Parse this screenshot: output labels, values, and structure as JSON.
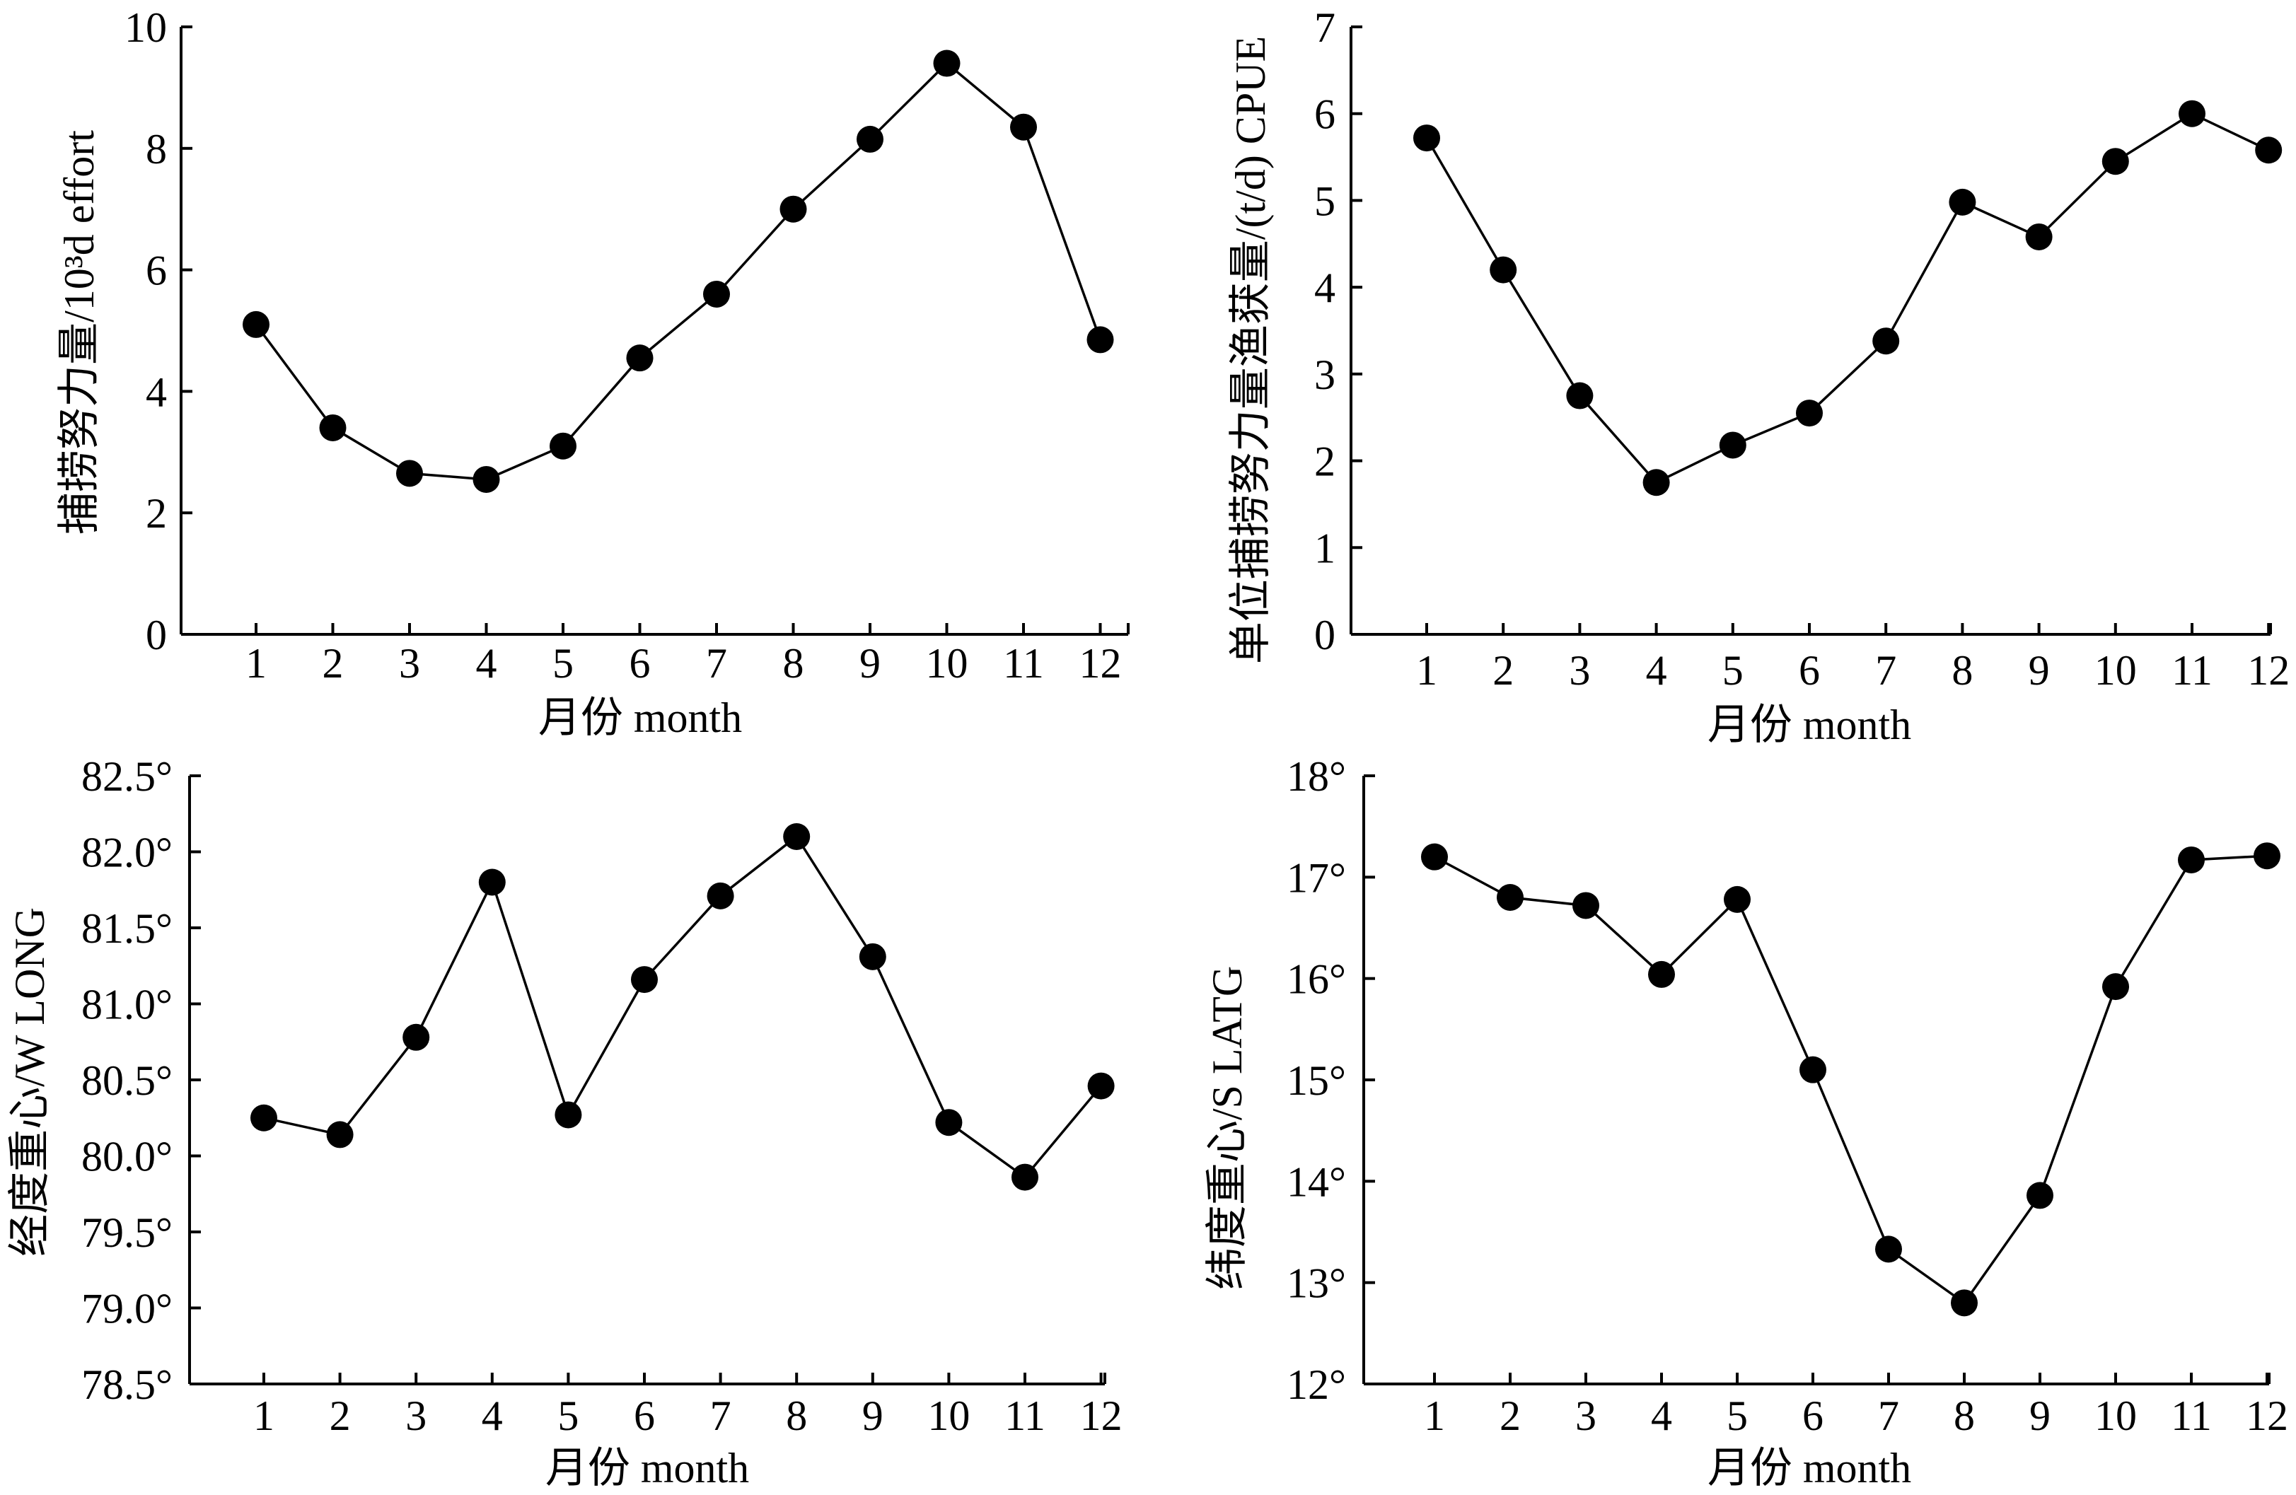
{
  "chart_data": [
    {
      "type": "line",
      "xlabel": "月份 month",
      "ylabel": "捕捞努力量/10³d effort",
      "categories": [
        "1",
        "2",
        "3",
        "4",
        "5",
        "6",
        "7",
        "8",
        "9",
        "10",
        "11",
        "12"
      ],
      "values": [
        5.1,
        3.4,
        2.65,
        2.55,
        3.1,
        4.55,
        5.6,
        7.0,
        8.15,
        9.4,
        8.35,
        4.85
      ],
      "ylim": [
        0,
        10
      ],
      "yticks": [
        0,
        2,
        4,
        6,
        8,
        10
      ],
      "ytick_labels": [
        "0",
        "2",
        "4",
        "6",
        "8",
        "10"
      ],
      "grid": false,
      "marker": "filled circle"
    },
    {
      "type": "line",
      "xlabel": "月份 month",
      "ylabel": "单位捕捞努力量渔获量/(t/d) CPUE",
      "categories": [
        "1",
        "2",
        "3",
        "4",
        "5",
        "6",
        "7",
        "8",
        "9",
        "10",
        "11",
        "12"
      ],
      "values": [
        5.72,
        4.2,
        2.75,
        1.75,
        2.18,
        2.55,
        3.38,
        4.98,
        4.58,
        5.45,
        6.0,
        5.58
      ],
      "ylim": [
        0,
        7
      ],
      "yticks": [
        0,
        1,
        2,
        3,
        4,
        5,
        6,
        7
      ],
      "ytick_labels": [
        "0",
        "1",
        "2",
        "3",
        "4",
        "5",
        "6",
        "7"
      ],
      "grid": false,
      "marker": "filled circle"
    },
    {
      "type": "line",
      "xlabel": "月份 month",
      "ylabel": "经度重心/W LONG",
      "categories": [
        "1",
        "2",
        "3",
        "4",
        "5",
        "6",
        "7",
        "8",
        "9",
        "10",
        "11",
        "12"
      ],
      "values": [
        80.25,
        80.14,
        80.78,
        81.8,
        80.27,
        81.16,
        81.71,
        82.1,
        81.31,
        80.22,
        79.86,
        80.46
      ],
      "ylim": [
        78.5,
        82.5
      ],
      "yticks": [
        78.5,
        79.0,
        79.5,
        80.0,
        80.5,
        81.0,
        81.5,
        82.0,
        82.5
      ],
      "ytick_labels": [
        "78.5°",
        "79.0°",
        "79.5°",
        "80.0°",
        "80.5°",
        "81.0°",
        "81.5°",
        "82.0°",
        "82.5°"
      ],
      "grid": false,
      "marker": "filled circle"
    },
    {
      "type": "line",
      "xlabel": "月份 month",
      "ylabel": "纬度重心/S LATG",
      "categories": [
        "1",
        "2",
        "3",
        "4",
        "5",
        "6",
        "7",
        "8",
        "9",
        "10",
        "11",
        "12"
      ],
      "values": [
        17.2,
        16.8,
        16.72,
        16.04,
        16.78,
        15.1,
        13.33,
        12.8,
        13.86,
        15.92,
        17.17,
        17.21
      ],
      "ylim": [
        12,
        18
      ],
      "yticks": [
        12,
        13,
        14,
        15,
        16,
        17,
        18
      ],
      "ytick_labels": [
        "12°",
        "13°",
        "14°",
        "15°",
        "16°",
        "17°",
        "18°"
      ],
      "grid": false,
      "marker": "filled circle"
    }
  ]
}
